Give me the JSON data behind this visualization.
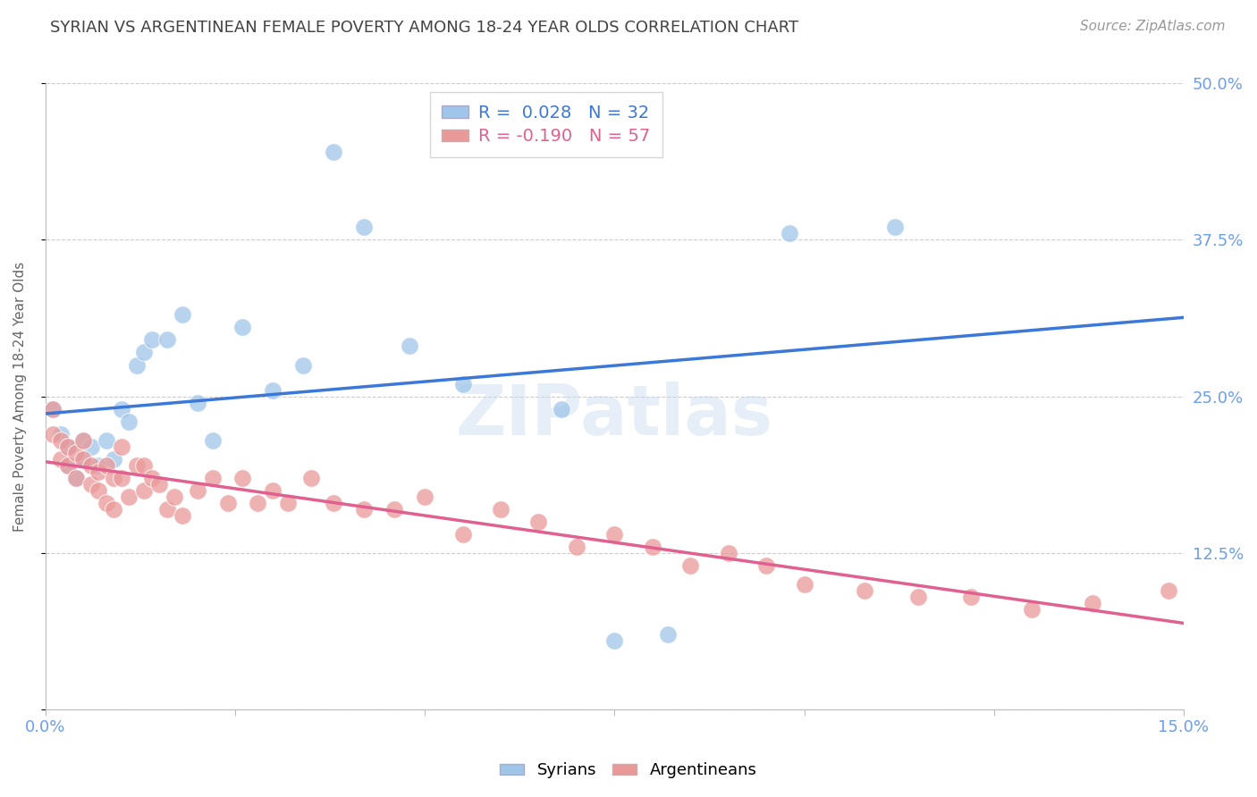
{
  "title": "SYRIAN VS ARGENTINEAN FEMALE POVERTY AMONG 18-24 YEAR OLDS CORRELATION CHART",
  "source": "Source: ZipAtlas.com",
  "ylabel": "Female Poverty Among 18-24 Year Olds",
  "xlim": [
    0.0,
    0.15
  ],
  "ylim": [
    0.0,
    0.5
  ],
  "yticks": [
    0.0,
    0.125,
    0.25,
    0.375,
    0.5
  ],
  "yticklabels": [
    "",
    "12.5%",
    "25.0%",
    "37.5%",
    "50.0%"
  ],
  "watermark": "ZIPatlas",
  "legend_R1": "R =  0.028",
  "legend_N1": "N = 32",
  "legend_R2": "R = -0.190",
  "legend_N2": "N = 57",
  "blue_color": "#9fc5e8",
  "pink_color": "#ea9999",
  "blue_line_color": "#3c78d8",
  "pink_line_color": "#e06090",
  "title_color": "#434343",
  "axis_label_color": "#6d9eeb",
  "grid_color": "#cccccc",
  "background_color": "#ffffff",
  "syrians_x": [
    0.001,
    0.002,
    0.003,
    0.003,
    0.004,
    0.005,
    0.005,
    0.006,
    0.007,
    0.008,
    0.009,
    0.01,
    0.011,
    0.012,
    0.013,
    0.014,
    0.016,
    0.018,
    0.02,
    0.022,
    0.026,
    0.03,
    0.034,
    0.038,
    0.042,
    0.048,
    0.055,
    0.068,
    0.075,
    0.082,
    0.098,
    0.112
  ],
  "syrians_y": [
    0.24,
    0.22,
    0.195,
    0.21,
    0.185,
    0.215,
    0.2,
    0.21,
    0.195,
    0.215,
    0.2,
    0.24,
    0.23,
    0.275,
    0.285,
    0.295,
    0.295,
    0.315,
    0.245,
    0.215,
    0.305,
    0.255,
    0.275,
    0.445,
    0.385,
    0.29,
    0.26,
    0.24,
    0.055,
    0.06,
    0.38,
    0.385
  ],
  "argentineans_x": [
    0.001,
    0.001,
    0.002,
    0.002,
    0.003,
    0.003,
    0.004,
    0.004,
    0.005,
    0.005,
    0.006,
    0.006,
    0.007,
    0.007,
    0.008,
    0.008,
    0.009,
    0.009,
    0.01,
    0.01,
    0.011,
    0.012,
    0.013,
    0.013,
    0.014,
    0.015,
    0.016,
    0.017,
    0.018,
    0.02,
    0.022,
    0.024,
    0.026,
    0.028,
    0.03,
    0.032,
    0.035,
    0.038,
    0.042,
    0.046,
    0.05,
    0.055,
    0.06,
    0.065,
    0.07,
    0.075,
    0.08,
    0.085,
    0.09,
    0.095,
    0.1,
    0.108,
    0.115,
    0.122,
    0.13,
    0.138,
    0.148
  ],
  "argentineans_y": [
    0.24,
    0.22,
    0.215,
    0.2,
    0.21,
    0.195,
    0.205,
    0.185,
    0.215,
    0.2,
    0.195,
    0.18,
    0.19,
    0.175,
    0.195,
    0.165,
    0.185,
    0.16,
    0.21,
    0.185,
    0.17,
    0.195,
    0.195,
    0.175,
    0.185,
    0.18,
    0.16,
    0.17,
    0.155,
    0.175,
    0.185,
    0.165,
    0.185,
    0.165,
    0.175,
    0.165,
    0.185,
    0.165,
    0.16,
    0.16,
    0.17,
    0.14,
    0.16,
    0.15,
    0.13,
    0.14,
    0.13,
    0.115,
    0.125,
    0.115,
    0.1,
    0.095,
    0.09,
    0.09,
    0.08,
    0.085,
    0.095
  ]
}
